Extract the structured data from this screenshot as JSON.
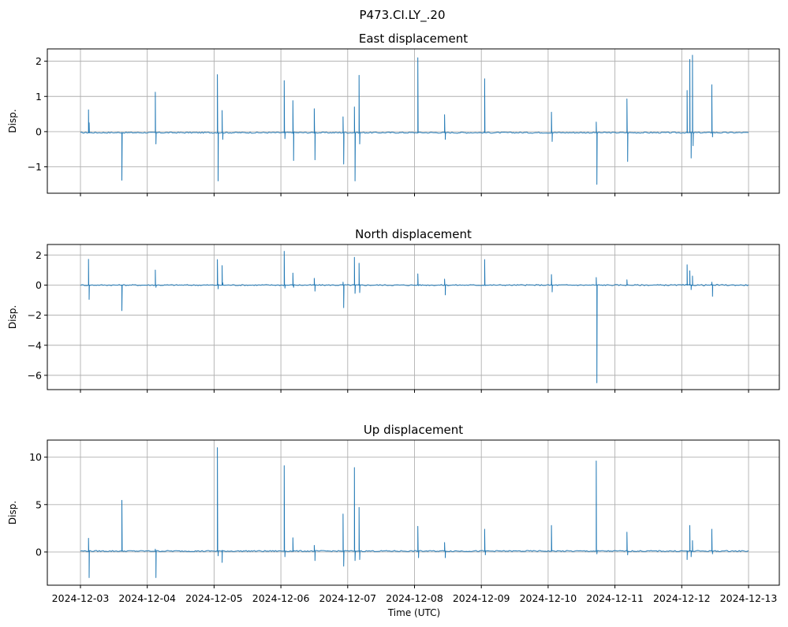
{
  "chart_data": {
    "type": "line",
    "title": "P473.CI.LY_.20",
    "series_color": "#1f77b4",
    "grid": true,
    "x_axis": {
      "label": "Time (UTC)",
      "tick_labels": [
        "2024-12-03",
        "2024-12-04",
        "2024-12-05",
        "2024-12-06",
        "2024-12-07",
        "2024-12-08",
        "2024-12-09",
        "2024-12-10",
        "2024-12-11",
        "2024-12-12",
        "2024-12-13"
      ],
      "range_days": [
        0,
        10
      ]
    },
    "panels": [
      {
        "title": "East displacement",
        "ylabel": "Disp.",
        "ylim": [
          -1.75,
          2.35
        ],
        "yticks": [
          -1,
          0,
          1,
          2
        ],
        "ytick_labels": [
          "−1",
          "0",
          "1",
          "2"
        ],
        "baseline": -0.03,
        "spikes": [
          [
            0.12,
            0.62
          ],
          [
            0.13,
            0.25
          ],
          [
            0.62,
            -1.38
          ],
          [
            1.12,
            1.12
          ],
          [
            1.13,
            -0.35
          ],
          [
            2.05,
            1.62
          ],
          [
            2.06,
            -1.4
          ],
          [
            2.12,
            0.6
          ],
          [
            2.13,
            -0.22
          ],
          [
            3.05,
            1.45
          ],
          [
            3.06,
            -0.2
          ],
          [
            3.18,
            0.88
          ],
          [
            3.19,
            -0.82
          ],
          [
            3.5,
            0.65
          ],
          [
            3.51,
            -0.8
          ],
          [
            3.93,
            0.42
          ],
          [
            3.94,
            -0.92
          ],
          [
            4.1,
            0.7
          ],
          [
            4.11,
            -1.4
          ],
          [
            4.17,
            1.6
          ],
          [
            4.18,
            -0.35
          ],
          [
            5.05,
            2.1
          ],
          [
            5.45,
            0.48
          ],
          [
            5.46,
            -0.22
          ],
          [
            6.05,
            1.5
          ],
          [
            7.05,
            0.55
          ],
          [
            7.06,
            -0.28
          ],
          [
            7.72,
            0.27
          ],
          [
            7.73,
            -1.5
          ],
          [
            8.18,
            0.93
          ],
          [
            8.19,
            -0.85
          ],
          [
            9.08,
            1.17
          ],
          [
            9.12,
            2.05
          ],
          [
            9.14,
            -0.75
          ],
          [
            9.16,
            2.17
          ],
          [
            9.17,
            -0.4
          ],
          [
            9.45,
            1.33
          ],
          [
            9.46,
            -0.15
          ]
        ]
      },
      {
        "title": "North displacement",
        "ylabel": "Disp.",
        "ylim": [
          -6.95,
          2.7
        ],
        "yticks": [
          -6,
          -4,
          -2,
          0,
          2
        ],
        "ytick_labels": [
          "−6",
          "−4",
          "−2",
          "0",
          "2"
        ],
        "baseline": 0.0,
        "spikes": [
          [
            0.12,
            1.72
          ],
          [
            0.13,
            -0.95
          ],
          [
            0.62,
            -1.7
          ],
          [
            1.12,
            1.0
          ],
          [
            1.13,
            -0.15
          ],
          [
            2.05,
            1.7
          ],
          [
            2.06,
            -0.25
          ],
          [
            2.12,
            1.3
          ],
          [
            2.13,
            0.15
          ],
          [
            3.05,
            2.25
          ],
          [
            3.06,
            -0.2
          ],
          [
            3.18,
            0.8
          ],
          [
            3.19,
            -0.15
          ],
          [
            3.5,
            0.45
          ],
          [
            3.51,
            -0.4
          ],
          [
            3.93,
            0.2
          ],
          [
            3.94,
            -1.5
          ],
          [
            4.1,
            1.85
          ],
          [
            4.11,
            -0.55
          ],
          [
            4.17,
            1.45
          ],
          [
            4.18,
            -0.5
          ],
          [
            5.05,
            0.75
          ],
          [
            5.45,
            0.4
          ],
          [
            5.46,
            -0.65
          ],
          [
            6.05,
            1.7
          ],
          [
            7.05,
            0.7
          ],
          [
            7.06,
            -0.45
          ],
          [
            7.72,
            0.5
          ],
          [
            7.73,
            -6.5
          ],
          [
            8.18,
            0.35
          ],
          [
            9.08,
            1.35
          ],
          [
            9.12,
            0.95
          ],
          [
            9.14,
            -0.3
          ],
          [
            9.16,
            0.6
          ],
          [
            9.45,
            0.2
          ],
          [
            9.46,
            -0.75
          ]
        ]
      },
      {
        "title": "Up displacement",
        "ylabel": "Disp.",
        "ylim": [
          -3.5,
          11.8
        ],
        "yticks": [
          0,
          5,
          10
        ],
        "ytick_labels": [
          "0",
          "5",
          "10"
        ],
        "baseline": 0.1,
        "spikes": [
          [
            0.12,
            1.45
          ],
          [
            0.13,
            -2.7
          ],
          [
            0.62,
            5.45
          ],
          [
            1.12,
            0.3
          ],
          [
            1.13,
            -2.7
          ],
          [
            2.05,
            11.0
          ],
          [
            2.06,
            -0.4
          ],
          [
            2.12,
            -1.1
          ],
          [
            3.05,
            9.1
          ],
          [
            3.06,
            -0.5
          ],
          [
            3.18,
            1.5
          ],
          [
            3.5,
            0.7
          ],
          [
            3.51,
            -0.9
          ],
          [
            3.93,
            4.0
          ],
          [
            3.94,
            -1.5
          ],
          [
            4.1,
            8.9
          ],
          [
            4.11,
            -0.9
          ],
          [
            4.17,
            4.7
          ],
          [
            4.18,
            -0.8
          ],
          [
            5.05,
            2.7
          ],
          [
            5.06,
            -0.6
          ],
          [
            5.45,
            1.0
          ],
          [
            5.46,
            -0.6
          ],
          [
            6.05,
            2.4
          ],
          [
            6.06,
            -0.3
          ],
          [
            7.05,
            2.8
          ],
          [
            7.72,
            9.6
          ],
          [
            7.73,
            -0.2
          ],
          [
            8.18,
            2.1
          ],
          [
            8.19,
            -0.3
          ],
          [
            9.08,
            -0.8
          ],
          [
            9.12,
            2.8
          ],
          [
            9.14,
            -0.5
          ],
          [
            9.16,
            1.2
          ],
          [
            9.45,
            2.4
          ],
          [
            9.46,
            -0.2
          ]
        ]
      }
    ]
  }
}
